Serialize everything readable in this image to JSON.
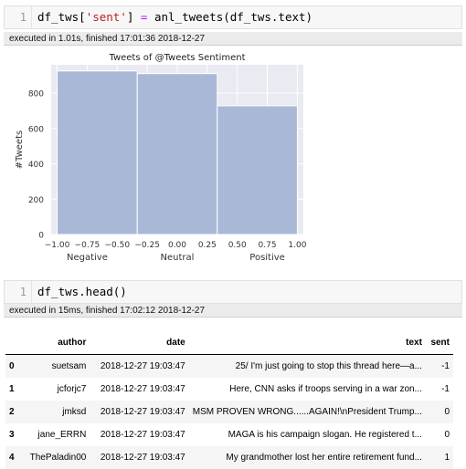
{
  "cells": [
    {
      "line_number": "1",
      "code_tokens": [
        "df_tws[",
        "'sent'",
        "] ",
        "=",
        " anl_tweets(df_tws.text)"
      ],
      "exec_info": "executed in 1.01s, finished 17:01:36 2018-12-27"
    },
    {
      "line_number": "1",
      "code": "df_tws.head()",
      "exec_info": "executed in 15ms, finished 17:02:12 2018-12-27"
    }
  ],
  "chart_data": {
    "type": "bar",
    "title": "Tweets of @Tweets Sentiment",
    "ylabel": "#Tweets",
    "xlabel": "",
    "bins": [
      {
        "x0": -1.0,
        "x1": -0.333,
        "value": 925
      },
      {
        "x0": -0.333,
        "x1": 0.333,
        "value": 910
      },
      {
        "x0": 0.333,
        "x1": 1.0,
        "value": 728
      }
    ],
    "xlim": [
      -1.05,
      1.05
    ],
    "ylim": [
      0,
      960
    ],
    "xticks": [
      -1.0,
      -0.75,
      -0.5,
      -0.25,
      0.0,
      0.25,
      0.5,
      0.75,
      1.0
    ],
    "xtick_labels": [
      "−1.00",
      "−0.75",
      "−0.50",
      "−0.25",
      "0.00",
      "0.25",
      "0.50",
      "0.75",
      "1.00"
    ],
    "yticks": [
      0,
      200,
      400,
      600,
      800
    ],
    "category_labels": [
      {
        "x": -0.75,
        "label": "Negative"
      },
      {
        "x": 0.0,
        "label": "Neutral"
      },
      {
        "x": 0.75,
        "label": "Positive"
      }
    ],
    "bar_color": "#a9b8d6",
    "plot_bg": "#eaeaf2",
    "grid": true
  },
  "table": {
    "columns": [
      "author",
      "date",
      "text",
      "sent"
    ],
    "rows": [
      {
        "index": "0",
        "author": "suetsam",
        "date": "2018-12-27 19:03:47",
        "text": "25/ I'm just going to stop this thread here—a...",
        "sent": "-1"
      },
      {
        "index": "1",
        "author": "jcforjc7",
        "date": "2018-12-27 19:03:47",
        "text": "Here, CNN asks if troops serving in a war zon...",
        "sent": "-1"
      },
      {
        "index": "2",
        "author": "jmksd",
        "date": "2018-12-27 19:03:47",
        "text": "MSM PROVEN WRONG......AGAIN!\\nPresident Trump...",
        "sent": "0"
      },
      {
        "index": "3",
        "author": "jane_ERRN",
        "date": "2018-12-27 19:03:47",
        "text": "MAGA is his campaign slogan. He registered t...",
        "sent": "0"
      },
      {
        "index": "4",
        "author": "ThePaladin00",
        "date": "2018-12-27 19:03:47",
        "text": "My grandmother lost her entire retirement fund...",
        "sent": "1"
      }
    ]
  }
}
